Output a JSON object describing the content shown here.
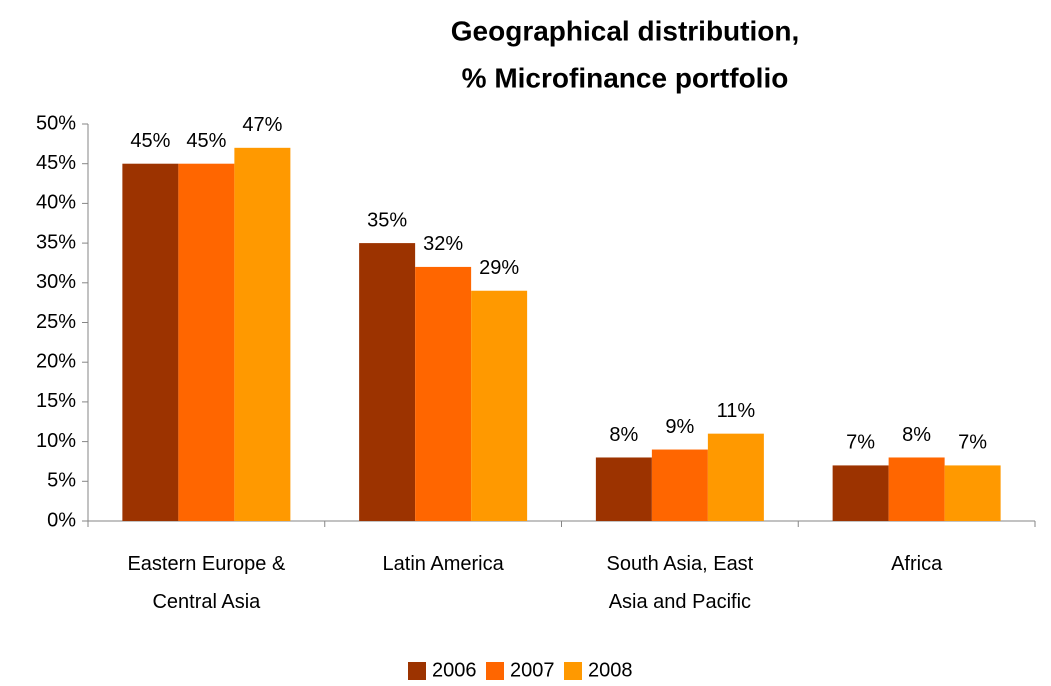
{
  "chart_data": {
    "type": "bar",
    "title": [
      "Geographical distribution,",
      "% Microfinance portfolio"
    ],
    "categories": [
      "Eastern Europe & Central Asia",
      "Latin America",
      "South Asia, East Asia and Pacific",
      "Africa"
    ],
    "series": [
      {
        "name": "2006",
        "color": "#9c3300",
        "values": [
          45,
          35,
          8,
          7
        ],
        "value_labels": [
          "45%",
          "35%",
          "8%",
          "7%"
        ]
      },
      {
        "name": "2007",
        "color": "#ff6600",
        "values": [
          45,
          32,
          9,
          8
        ],
        "value_labels": [
          "45%",
          "32%",
          "9%",
          "8%"
        ]
      },
      {
        "name": "2008",
        "color": "#ff9900",
        "values": [
          47,
          29,
          11,
          7
        ],
        "value_labels": [
          "47%",
          "29%",
          "11%",
          "7%"
        ]
      }
    ],
    "ylim": [
      0,
      50
    ],
    "yticks": [
      {
        "value": 0,
        "label": "0%"
      },
      {
        "value": 5,
        "label": "5%"
      },
      {
        "value": 10,
        "label": "10%"
      },
      {
        "value": 15,
        "label": "15%"
      },
      {
        "value": 20,
        "label": "20%"
      },
      {
        "value": 25,
        "label": "25%"
      },
      {
        "value": 30,
        "label": "30%"
      },
      {
        "value": 35,
        "label": "35%"
      },
      {
        "value": 40,
        "label": "40%"
      },
      {
        "value": 45,
        "label": "45%"
      },
      {
        "value": 50,
        "label": "50%"
      }
    ],
    "grid": false,
    "legend": "bottom"
  }
}
